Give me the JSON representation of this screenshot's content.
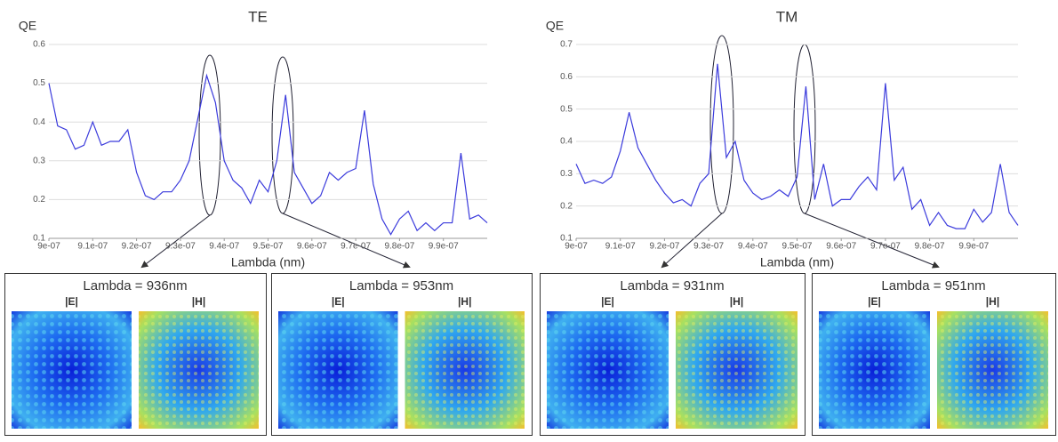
{
  "chart_data": [
    {
      "type": "line",
      "title": "TE",
      "y_label": "QE",
      "x_label": "Lambda (nm)",
      "color": "#3b3bdc",
      "grid": true,
      "x": [
        9e-07,
        9.02e-07,
        9.04e-07,
        9.06e-07,
        9.08e-07,
        9.1e-07,
        9.12e-07,
        9.14e-07,
        9.16e-07,
        9.18e-07,
        9.2e-07,
        9.22e-07,
        9.24e-07,
        9.26e-07,
        9.28e-07,
        9.3e-07,
        9.32e-07,
        9.34e-07,
        9.36e-07,
        9.38e-07,
        9.4e-07,
        9.42e-07,
        9.44e-07,
        9.46e-07,
        9.48e-07,
        9.5e-07,
        9.52e-07,
        9.54e-07,
        9.56e-07,
        9.58e-07,
        9.6e-07,
        9.62e-07,
        9.64e-07,
        9.66e-07,
        9.68e-07,
        9.7e-07,
        9.72e-07,
        9.74e-07,
        9.76e-07,
        9.78e-07,
        9.8e-07,
        9.82e-07,
        9.84e-07,
        9.86e-07,
        9.88e-07,
        9.9e-07,
        9.92e-07,
        9.94e-07,
        9.96e-07,
        9.98e-07,
        1e-06
      ],
      "values": [
        0.5,
        0.39,
        0.38,
        0.33,
        0.34,
        0.4,
        0.34,
        0.35,
        0.35,
        0.38,
        0.27,
        0.21,
        0.2,
        0.22,
        0.22,
        0.25,
        0.3,
        0.41,
        0.52,
        0.45,
        0.3,
        0.25,
        0.23,
        0.19,
        0.25,
        0.22,
        0.3,
        0.47,
        0.27,
        0.23,
        0.19,
        0.21,
        0.27,
        0.25,
        0.27,
        0.28,
        0.43,
        0.24,
        0.15,
        0.11,
        0.15,
        0.17,
        0.12,
        0.14,
        0.12,
        0.14,
        0.14,
        0.32,
        0.15,
        0.16,
        0.14
      ],
      "xlim": [
        9e-07,
        1e-06
      ],
      "ylim": [
        0.1,
        0.6
      ],
      "xticks": [
        {
          "value": 9e-07,
          "label": "9e-07"
        },
        {
          "value": 9.1e-07,
          "label": "9.1e-07"
        },
        {
          "value": 9.2e-07,
          "label": "9.2e-07"
        },
        {
          "value": 9.3e-07,
          "label": "9.3e-07"
        },
        {
          "value": 9.4e-07,
          "label": "9.4e-07"
        },
        {
          "value": 9.5e-07,
          "label": "9.5e-07"
        },
        {
          "value": 9.6e-07,
          "label": "9.6e-07"
        },
        {
          "value": 9.7e-07,
          "label": "9.7e-07"
        },
        {
          "value": 9.8e-07,
          "label": "9.8e-07"
        },
        {
          "value": 9.9e-07,
          "label": "9.9e-07"
        }
      ],
      "yticks": [
        0.1,
        0.2,
        0.3,
        0.4,
        0.5,
        0.6
      ]
    },
    {
      "type": "line",
      "title": "TM",
      "y_label": "QE",
      "x_label": "Lambda (nm)",
      "color": "#3b3bdc",
      "grid": true,
      "x": [
        9e-07,
        9.02e-07,
        9.04e-07,
        9.06e-07,
        9.08e-07,
        9.1e-07,
        9.12e-07,
        9.14e-07,
        9.16e-07,
        9.18e-07,
        9.2e-07,
        9.22e-07,
        9.24e-07,
        9.26e-07,
        9.28e-07,
        9.3e-07,
        9.32e-07,
        9.34e-07,
        9.36e-07,
        9.38e-07,
        9.4e-07,
        9.42e-07,
        9.44e-07,
        9.46e-07,
        9.48e-07,
        9.5e-07,
        9.52e-07,
        9.54e-07,
        9.56e-07,
        9.58e-07,
        9.6e-07,
        9.62e-07,
        9.64e-07,
        9.66e-07,
        9.68e-07,
        9.7e-07,
        9.72e-07,
        9.74e-07,
        9.76e-07,
        9.78e-07,
        9.8e-07,
        9.82e-07,
        9.84e-07,
        9.86e-07,
        9.88e-07,
        9.9e-07,
        9.92e-07,
        9.94e-07,
        9.96e-07,
        9.98e-07,
        1e-06
      ],
      "values": [
        0.33,
        0.27,
        0.28,
        0.27,
        0.29,
        0.37,
        0.49,
        0.38,
        0.33,
        0.28,
        0.24,
        0.21,
        0.22,
        0.2,
        0.27,
        0.3,
        0.64,
        0.35,
        0.4,
        0.28,
        0.24,
        0.22,
        0.23,
        0.25,
        0.23,
        0.29,
        0.57,
        0.22,
        0.33,
        0.2,
        0.22,
        0.22,
        0.26,
        0.29,
        0.25,
        0.58,
        0.28,
        0.32,
        0.19,
        0.22,
        0.14,
        0.18,
        0.14,
        0.13,
        0.13,
        0.19,
        0.15,
        0.18,
        0.33,
        0.18,
        0.14
      ],
      "xlim": [
        9e-07,
        1e-06
      ],
      "ylim": [
        0.1,
        0.7
      ],
      "xticks": [
        {
          "value": 9e-07,
          "label": "9e-07"
        },
        {
          "value": 9.1e-07,
          "label": "9.1e-07"
        },
        {
          "value": 9.2e-07,
          "label": "9.2e-07"
        },
        {
          "value": 9.3e-07,
          "label": "9.3e-07"
        },
        {
          "value": 9.4e-07,
          "label": "9.4e-07"
        },
        {
          "value": 9.5e-07,
          "label": "9.5e-07"
        },
        {
          "value": 9.6e-07,
          "label": "9.6e-07"
        },
        {
          "value": 9.7e-07,
          "label": "9.7e-07"
        },
        {
          "value": 9.8e-07,
          "label": "9.8e-07"
        },
        {
          "value": 9.9e-07,
          "label": "9.9e-07"
        }
      ],
      "yticks": [
        0.1,
        0.2,
        0.3,
        0.4,
        0.5,
        0.6,
        0.7
      ]
    }
  ],
  "panels": [
    {
      "title": "Lambda = 936nm",
      "labels": [
        "|E|",
        "|H|"
      ]
    },
    {
      "title": "Lambda = 953nm",
      "labels": [
        "|E|",
        "|H|"
      ]
    },
    {
      "title": "Lambda = 931nm",
      "labels": [
        "|E|",
        "|H|"
      ]
    },
    {
      "title": "Lambda = 951nm",
      "labels": [
        "|E|",
        "|H|"
      ]
    }
  ]
}
